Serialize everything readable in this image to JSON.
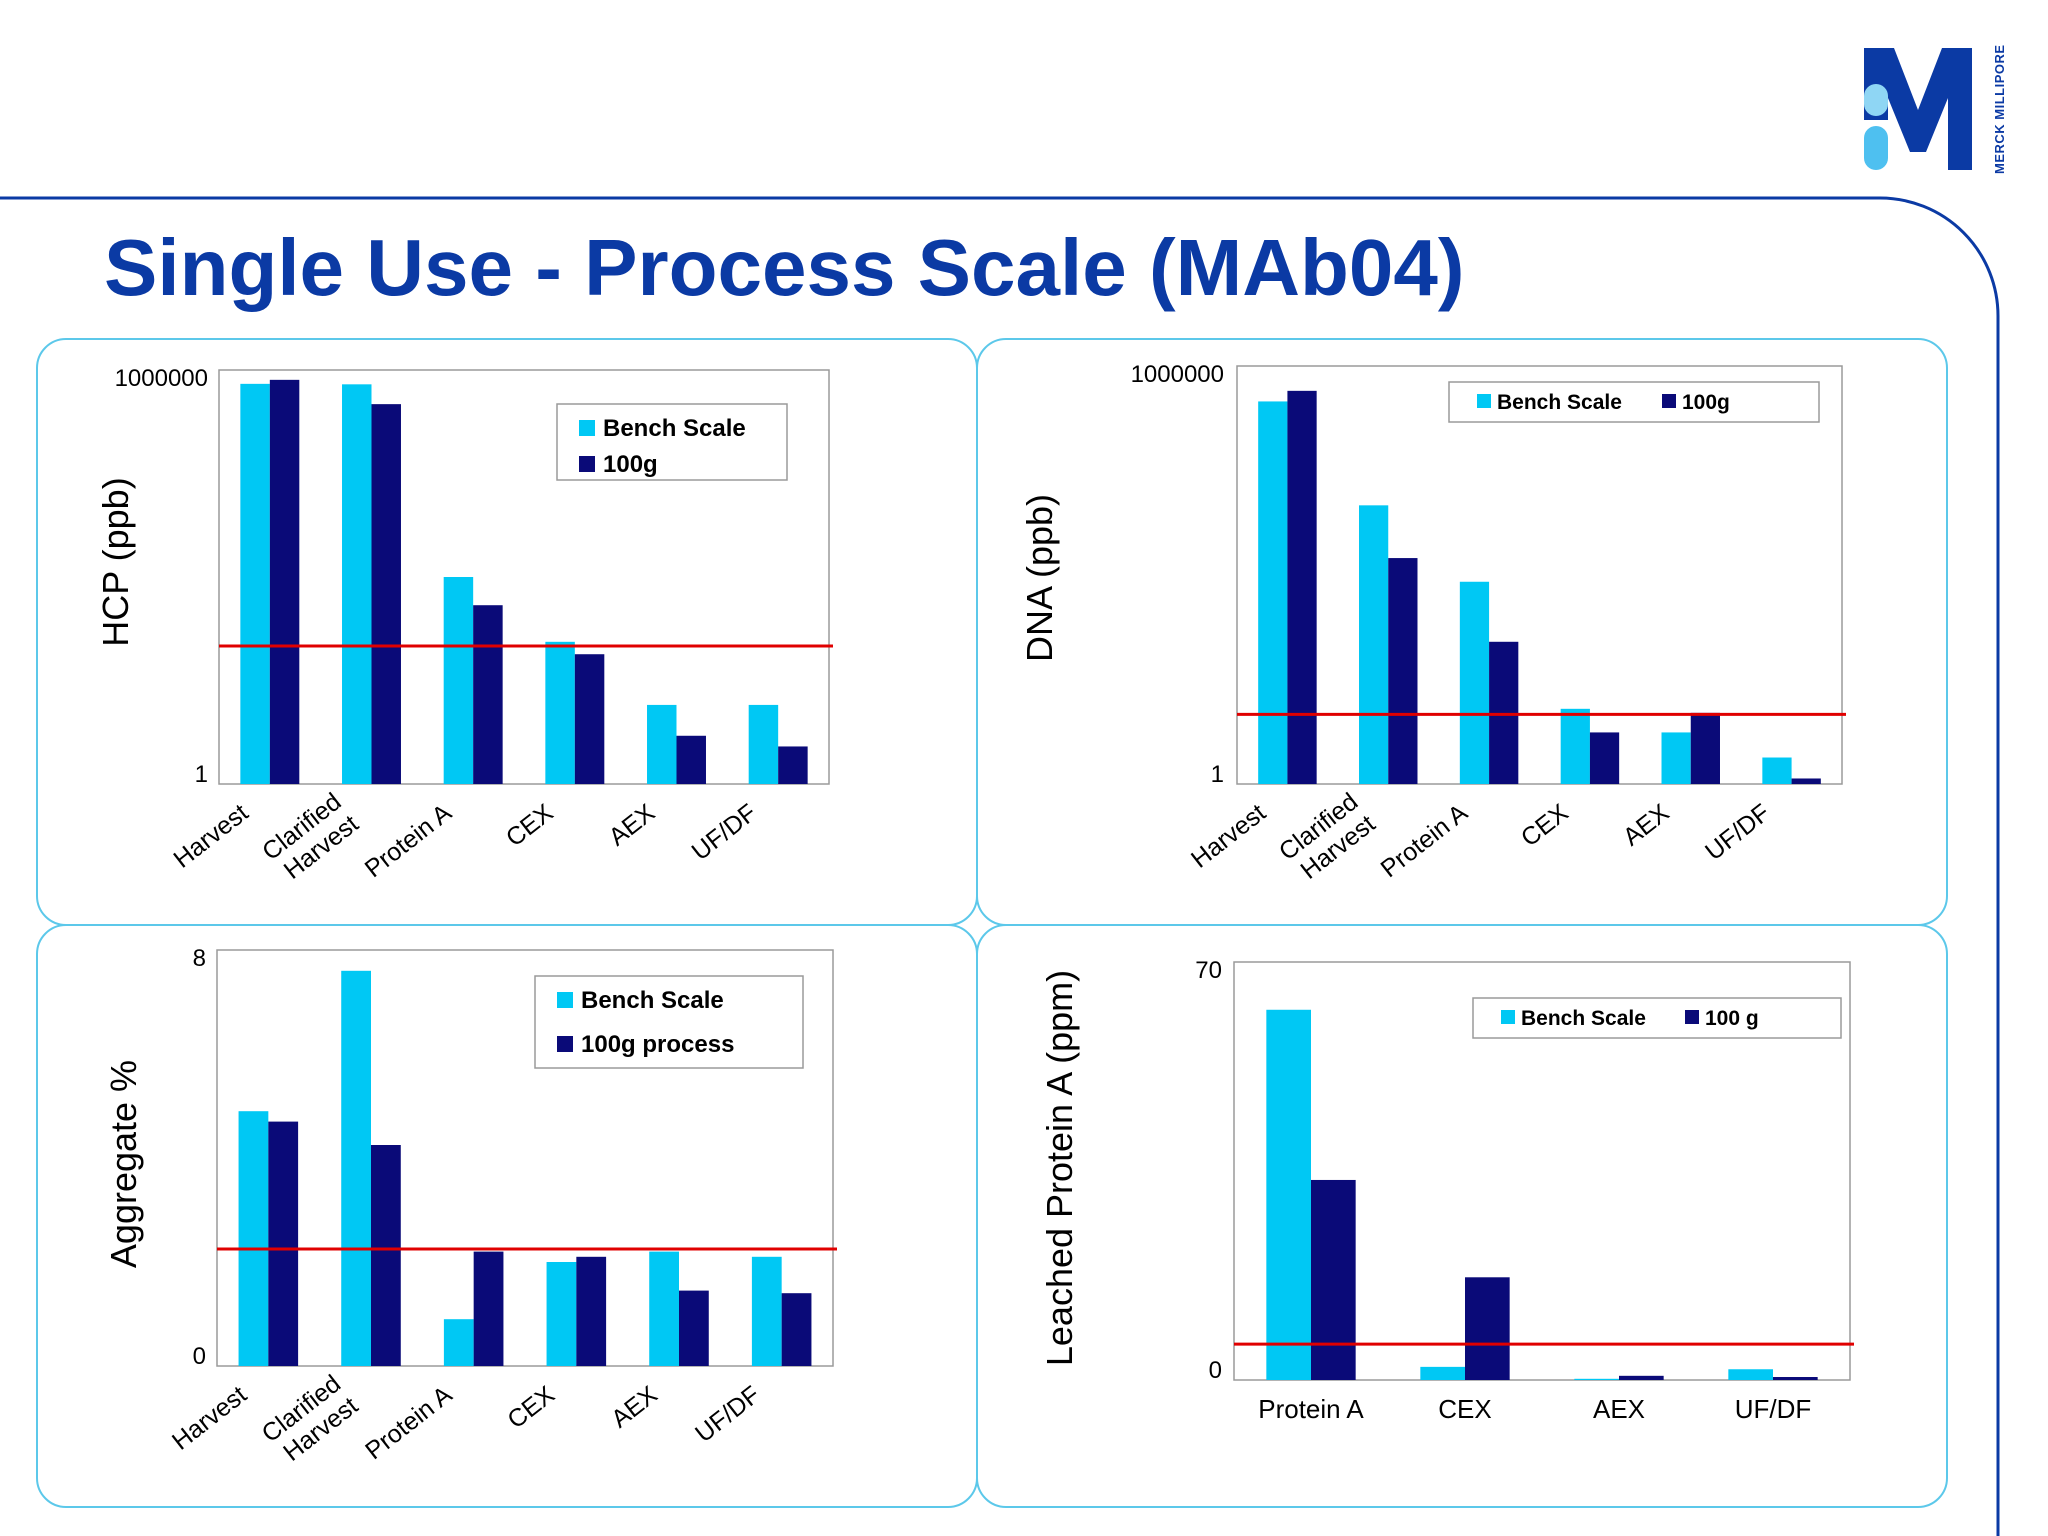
{
  "slide": {
    "title": "Single Use - Process Scale (MAb04)",
    "logo_text": "MERCK MILLIPORE"
  },
  "colors": {
    "bench": "#00c8f4",
    "process": "#0a0a78",
    "threshold": "#e00000",
    "accent": "#0b3aa4",
    "panel_border": "#5cc8ea"
  },
  "chart_data": [
    {
      "id": "hcp",
      "type": "bar",
      "scale": "log",
      "ylabel": "HCP (ppb)",
      "ylim": [
        1,
        1000000
      ],
      "yticks": [
        "1",
        "1000000"
      ],
      "categories": [
        "Harvest",
        "Clarified\nHarvest",
        "Protein A",
        "CEX",
        "AEX",
        "UF/DF"
      ],
      "series": [
        {
          "name": "Bench Scale",
          "values": [
            630000,
            620000,
            1000,
            115,
            14,
            14
          ]
        },
        {
          "name": "100g",
          "values": [
            720000,
            320000,
            390,
            76,
            5,
            3.5
          ]
        }
      ],
      "threshold": 100,
      "legend": {
        "position": "top-right",
        "layout": "vertical"
      },
      "tick_rotation": "rotated"
    },
    {
      "id": "dna",
      "type": "bar",
      "scale": "log",
      "ylabel": "DNA (ppb)",
      "ylim": [
        1,
        1000000
      ],
      "yticks": [
        "1",
        "1000000"
      ],
      "categories": [
        "Harvest",
        "Clarified\nHarvest",
        "Protein A",
        "CEX",
        "AEX",
        "UF/DF"
      ],
      "series": [
        {
          "name": "Bench Scale",
          "values": [
            310000,
            10000,
            800,
            12,
            5.5,
            2.4
          ]
        },
        {
          "name": "100g",
          "values": [
            440000,
            1750,
            110,
            5.5,
            10.5,
            1.2
          ]
        }
      ],
      "threshold": 10,
      "legend": {
        "position": "top-right",
        "layout": "horizontal"
      },
      "tick_rotation": "rotated"
    },
    {
      "id": "aggregate",
      "type": "bar",
      "scale": "linear",
      "ylabel": "Aggregate %",
      "ylim": [
        0,
        8
      ],
      "yticks": [
        "0",
        "8"
      ],
      "categories": [
        "Harvest",
        "Clarified\nHarvest",
        "Protein A",
        "CEX",
        "AEX",
        "UF/DF"
      ],
      "series": [
        {
          "name": "Bench Scale",
          "values": [
            4.9,
            7.6,
            0.9,
            2.0,
            2.2,
            2.1
          ]
        },
        {
          "name": "100g process",
          "values": [
            4.7,
            4.25,
            2.2,
            2.1,
            1.45,
            1.4
          ]
        }
      ],
      "threshold": 2.25,
      "legend": {
        "position": "top-right",
        "layout": "vertical"
      },
      "tick_rotation": "rotated"
    },
    {
      "id": "leached",
      "type": "bar",
      "scale": "linear",
      "ylabel": "Leached Protein A (ppm)",
      "ylim": [
        0,
        70
      ],
      "yticks": [
        "0",
        "70"
      ],
      "categories": [
        "Protein A",
        "CEX",
        "AEX",
        "UF/DF"
      ],
      "series": [
        {
          "name": "Bench Scale",
          "values": [
            62,
            2.2,
            0.2,
            1.8
          ]
        },
        {
          "name": "100 g",
          "values": [
            33.5,
            17.2,
            0.7,
            0.5
          ]
        }
      ],
      "threshold": 6,
      "legend": {
        "position": "top-right",
        "layout": "horizontal"
      },
      "tick_rotation": "none"
    }
  ]
}
